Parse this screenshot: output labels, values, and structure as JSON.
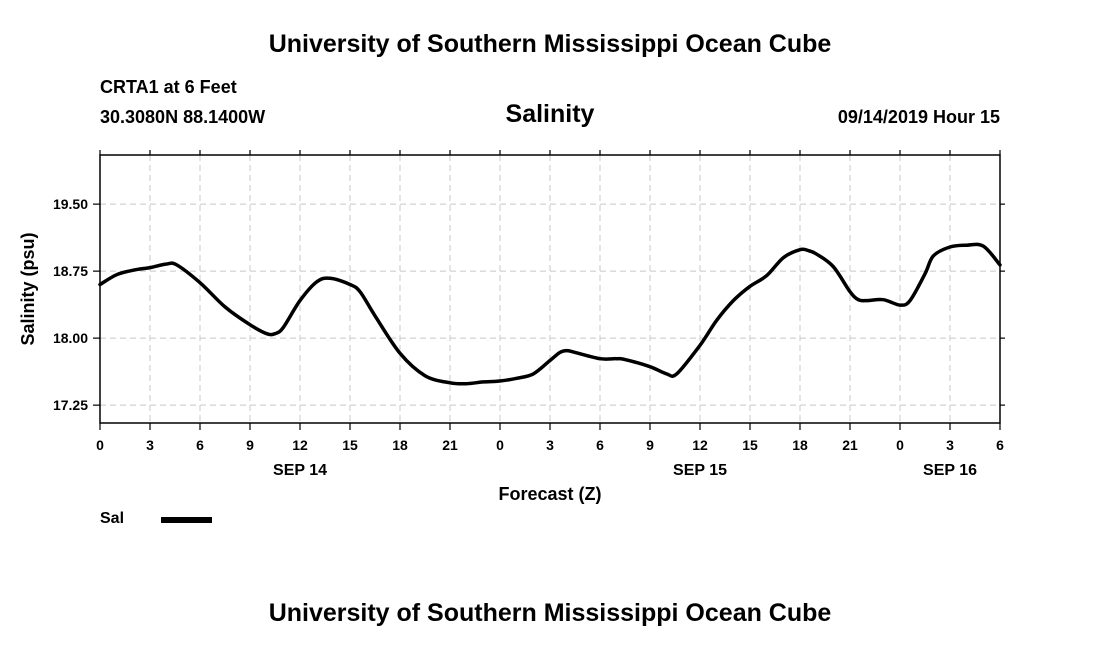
{
  "header": {
    "title": "University of Southern Mississippi Ocean Cube",
    "station": "CRTA1 at 6 Feet",
    "coords": "30.3080N 88.1400W",
    "variable": "Salinity",
    "datetime": "09/14/2019 Hour 15"
  },
  "footer": {
    "title": "University of Southern Mississippi Ocean Cube"
  },
  "legend": {
    "label": "Sal"
  },
  "chart_data": {
    "type": "line",
    "xlabel": "Forecast (Z)",
    "ylabel": "Salinity (psu)",
    "xlim": [
      0,
      54
    ],
    "ylim": [
      17.05,
      20.05
    ],
    "x_ticks": [
      0,
      3,
      6,
      9,
      12,
      15,
      18,
      21,
      24,
      27,
      30,
      33,
      36,
      39,
      42,
      45,
      48,
      51,
      54
    ],
    "x_tick_labels": [
      "0",
      "3",
      "6",
      "9",
      "12",
      "15",
      "18",
      "21",
      "0",
      "3",
      "6",
      "9",
      "12",
      "15",
      "18",
      "21",
      "0",
      "3",
      "6"
    ],
    "y_ticks": [
      17.25,
      18.0,
      18.75,
      19.5
    ],
    "y_tick_labels": [
      "17.25",
      "18.00",
      "18.75",
      "19.50"
    ],
    "date_labels": [
      {
        "x": 12,
        "label": "SEP 14"
      },
      {
        "x": 36,
        "label": "SEP 15"
      },
      {
        "x": 51,
        "label": "SEP 16"
      }
    ],
    "grid": true,
    "series": [
      {
        "name": "Sal",
        "color": "#000000",
        "x": [
          0,
          1,
          2,
          3,
          4,
          4.6,
          6,
          7.5,
          9,
          10,
          10.5,
          11,
          12,
          13,
          13.8,
          15,
          15.6,
          16.5,
          18,
          19.5,
          21,
          22,
          23,
          24,
          25,
          26,
          27,
          27.6,
          28,
          28.5,
          30,
          31,
          31.5,
          33,
          34,
          34.6,
          36,
          37,
          38,
          39,
          40,
          41,
          42,
          42.5,
          43,
          44,
          45,
          45.5,
          46,
          47,
          48,
          48.6,
          49.5,
          50,
          51,
          52,
          53,
          54
        ],
        "y": [
          18.6,
          18.71,
          18.76,
          18.79,
          18.83,
          18.82,
          18.62,
          18.35,
          18.15,
          18.05,
          18.05,
          18.12,
          18.42,
          18.63,
          18.67,
          18.6,
          18.52,
          18.25,
          17.83,
          17.58,
          17.5,
          17.49,
          17.51,
          17.52,
          17.55,
          17.6,
          17.75,
          17.84,
          17.86,
          17.84,
          17.77,
          17.77,
          17.76,
          17.68,
          17.6,
          17.6,
          17.92,
          18.2,
          18.42,
          18.58,
          18.7,
          18.9,
          18.99,
          18.98,
          18.94,
          18.8,
          18.52,
          18.43,
          18.42,
          18.43,
          18.37,
          18.42,
          18.72,
          18.92,
          19.02,
          19.04,
          19.03,
          18.82
        ]
      }
    ]
  }
}
